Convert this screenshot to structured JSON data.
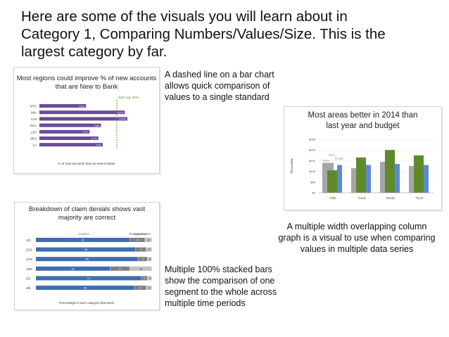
{
  "slide": {
    "title_lines": [
      "Here are some of the visuals you will learn about in",
      "Category 1, Comparing Numbers/Values/Size. This is the",
      "largest category by far."
    ]
  },
  "captions": {
    "dashed_line": [
      "A dashed line on a bar chart",
      "allows quick comparison of",
      "values to a single standard"
    ],
    "column_graph": [
      "A multiple width overlapping column",
      "graph is a visual to use when comparing",
      "values in multiple data series"
    ],
    "stacked_bars": [
      "Multiple 100% stacked bars",
      "show the comparison of one",
      "segment to the whole across",
      "multiple time periods"
    ]
  },
  "colors": {
    "purple": "#6a4b9b",
    "green": "#5f8a2c",
    "gray": "#a6a6a6",
    "blue": "#5b8ad1",
    "dark_gray": "#7f7f7f",
    "light_gray": "#c0c0c0",
    "bar_blue": "#3f6db3"
  },
  "chart_data": [
    {
      "type": "bar",
      "title": "Most regions could improve % of new accounts that are New to Bank",
      "title_lines": [
        "Most regions could improve % of new accounts",
        "that are New to Bank"
      ],
      "categories": [
        "NYC",
        "MIA",
        "CHI",
        "DAL",
        "LSV",
        "SEA",
        "LA"
      ],
      "values": [
        53,
        97,
        100,
        70,
        57,
        67,
        72
      ],
      "value_labels": [
        "53%",
        "97%",
        "100%",
        "70%",
        "57%",
        "67%",
        "72%"
      ],
      "reference_value": 88,
      "reference_label": "Nat'l avg: 88%",
      "xlabel": "% of new accounts that are New to Bank",
      "xlim": [
        0,
        120
      ]
    },
    {
      "type": "bar",
      "title": "Most areas better in 2014 than last year and budget",
      "title_lines": [
        "Most areas better in 2014 than",
        "last year and budget"
      ],
      "categories": [
        "Gifts",
        "Food",
        "Drinks",
        "Tours"
      ],
      "series": [
        {
          "name": "2013",
          "values": [
            140,
            115,
            145,
            125
          ]
        },
        {
          "name": "2014",
          "values": [
            105,
            165,
            200,
            175
          ]
        },
        {
          "name": "Budget",
          "values": [
            130,
            130,
            135,
            130
          ]
        }
      ],
      "ylabel": "Thousands",
      "y_ticks": [
        "$0",
        "$50",
        "$100",
        "$150",
        "$200",
        "$250"
      ],
      "ylim": [
        0,
        250
      ]
    },
    {
      "type": "bar",
      "title": "Breakdown of claim denials shows vast majority are correct",
      "title_lines": [
        "Breakdown of claim denials shows vast",
        "majority are correct"
      ],
      "categories": [
        "1/5",
        "1/12",
        "1/19",
        "1/26",
        "2/2",
        "2/9"
      ],
      "legend": [
        "Correct",
        "Process error",
        "System error"
      ],
      "series": [
        {
          "name": "Correct",
          "values": [
            81,
            86,
            88,
            64,
            91,
            85
          ]
        },
        {
          "name": "Process error",
          "values": [
            13,
            9,
            8,
            17,
            5,
            10
          ]
        },
        {
          "name": "System error",
          "values": [
            6,
            5,
            4,
            19,
            4,
            5
          ]
        }
      ],
      "xlabel": "Percentage in each category that week",
      "xlim": [
        0,
        100
      ]
    }
  ]
}
